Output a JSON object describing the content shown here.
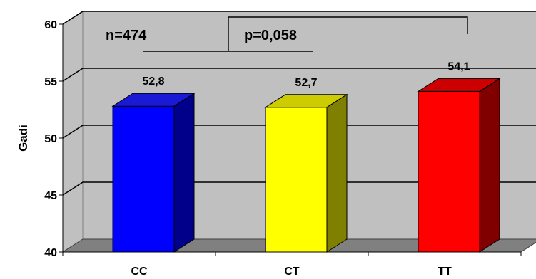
{
  "chart_data": {
    "type": "bar",
    "categories": [
      "CC",
      "CT",
      "TT"
    ],
    "values": [
      52.8,
      52.7,
      54.1
    ],
    "value_labels": [
      "52,8",
      "52,7",
      "54,1"
    ],
    "ylabel": "Gadi",
    "ylim": [
      40,
      60
    ],
    "yticks": [
      40,
      45,
      50,
      55,
      60
    ],
    "grid": true,
    "bar_style": "3d",
    "colors": {
      "bars": [
        {
          "front": "#0000ff",
          "top": "#1a1ad6",
          "side": "#00008b"
        },
        {
          "front": "#ffff00",
          "top": "#cccc00",
          "side": "#808000"
        },
        {
          "front": "#ff0000",
          "top": "#cc0000",
          "side": "#800000"
        }
      ],
      "wall": "#c0c0c0",
      "floor": "#808080"
    },
    "annotations": {
      "n_label": "n=474",
      "p_label": "p=0,058"
    }
  }
}
